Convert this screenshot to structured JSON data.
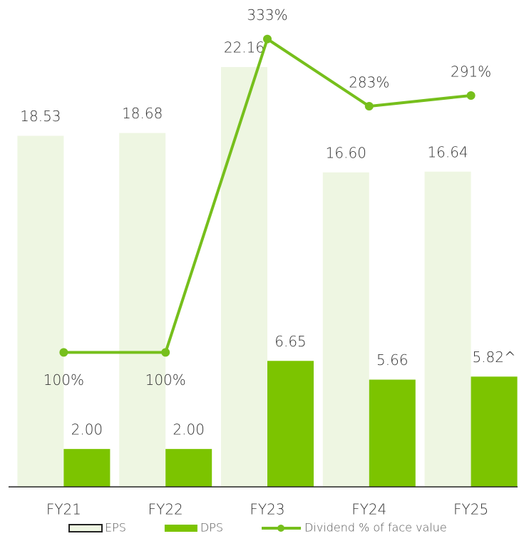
{
  "chart_data": {
    "type": "bar",
    "categories": [
      "FY21",
      "FY22",
      "FY23",
      "FY24",
      "FY25"
    ],
    "ylim": [
      0,
      25.7
    ],
    "y2lim": [
      0,
      362
    ],
    "series": [
      {
        "name": "EPS",
        "type": "bar",
        "color": "#eef6e2",
        "values": [
          18.53,
          18.68,
          22.16,
          16.6,
          16.64
        ],
        "value_labels": [
          "18.53",
          "18.68",
          "22.16",
          "16.60",
          "16.64"
        ]
      },
      {
        "name": "DPS",
        "type": "bar",
        "color": "#7cc400",
        "values": [
          2.0,
          2.0,
          6.65,
          5.66,
          5.82
        ],
        "value_labels": [
          "2.00",
          "2.00",
          "6.65",
          "5.66",
          "5.82^"
        ]
      },
      {
        "name": "Dividend % of face value",
        "type": "line",
        "axis": "y2",
        "color": "#76bf1c",
        "values": [
          100,
          100,
          333,
          283,
          291
        ],
        "value_labels": [
          "100%",
          "100%",
          "333%",
          "283%",
          "291%"
        ]
      }
    ]
  }
}
